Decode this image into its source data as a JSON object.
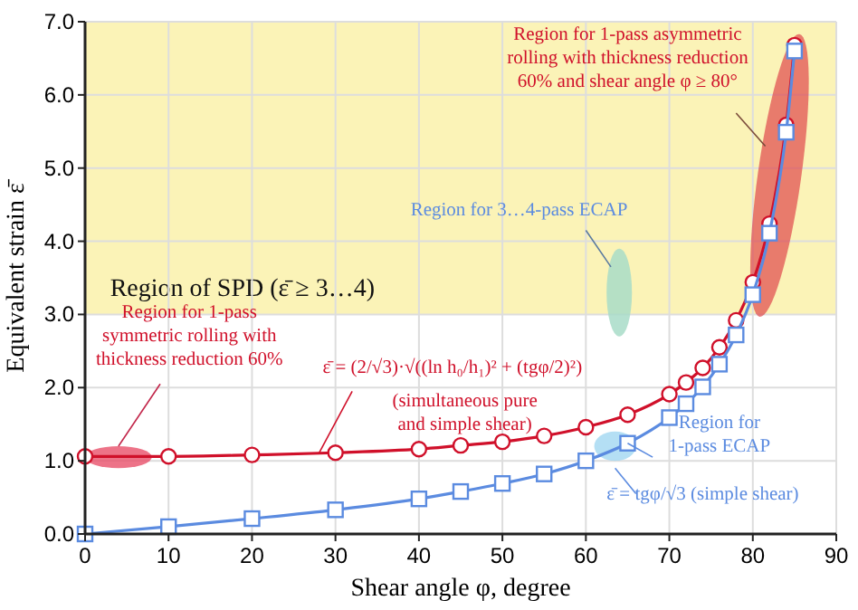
{
  "chart_data": {
    "type": "line",
    "xlabel": "Shear angle φ, degree",
    "ylabel": "Equivalent strain ε̄",
    "x": [
      0,
      10,
      20,
      30,
      40,
      45,
      50,
      55,
      60,
      65,
      70,
      72,
      74,
      76,
      78,
      80,
      82,
      84,
      85
    ],
    "series": [
      {
        "color": "#d0102a",
        "marker": "circle",
        "values": [
          1.06,
          1.06,
          1.08,
          1.11,
          1.16,
          1.21,
          1.26,
          1.34,
          1.46,
          1.63,
          1.91,
          2.07,
          2.27,
          2.55,
          2.92,
          3.44,
          4.24,
          5.59,
          6.68
        ]
      },
      {
        "color": "#5b8be0",
        "marker": "square",
        "values": [
          0,
          0.1,
          0.21,
          0.33,
          0.48,
          0.58,
          0.69,
          0.82,
          1.0,
          1.24,
          1.59,
          1.78,
          2.01,
          2.32,
          2.72,
          3.27,
          4.11,
          5.49,
          6.6
        ]
      }
    ],
    "xlim": [
      0,
      90
    ],
    "xticks": [
      0,
      10,
      20,
      30,
      40,
      50,
      60,
      70,
      80,
      90
    ],
    "ylim": [
      0,
      7
    ],
    "yticks": [
      {
        "value": 0,
        "label": "0.0"
      },
      {
        "value": 1,
        "label": "1.0"
      },
      {
        "value": 2,
        "label": "2.0"
      },
      {
        "value": 3,
        "label": "3.0"
      },
      {
        "value": 4,
        "label": "4.0"
      },
      {
        "value": 5,
        "label": "5.0"
      },
      {
        "value": 6,
        "label": "6.0"
      },
      {
        "value": 7,
        "label": "7.0"
      }
    ],
    "grid": true,
    "bands": [
      {
        "axis": "y",
        "from": 3,
        "to": 7,
        "label": "Region of SPD (ε̄ ≥ 3…4)",
        "color": "#fbf3b7"
      }
    ],
    "annotations": [
      "Region for 1-pass asymmetric\nrolling with thickness reduction\n60% and shear angle φ ≥ 80°",
      "Region for 3…4-pass ECAP",
      "Region for 1-pass\nsymmetric rolling with\nthickness reduction 60%",
      {
        "text": "ε̄ = (2/√3)·√((ln h₀/h₁)² + (tgφ/2)²)",
        "x": 28,
        "y": 1.1
      },
      "(simultaneous pure\nand simple shear)",
      {
        "text": "Region for\n1-pass ECAP",
        "x": 65,
        "y": 1.24
      },
      "ε̄ = tgφ/√3  (simple shear)"
    ]
  }
}
